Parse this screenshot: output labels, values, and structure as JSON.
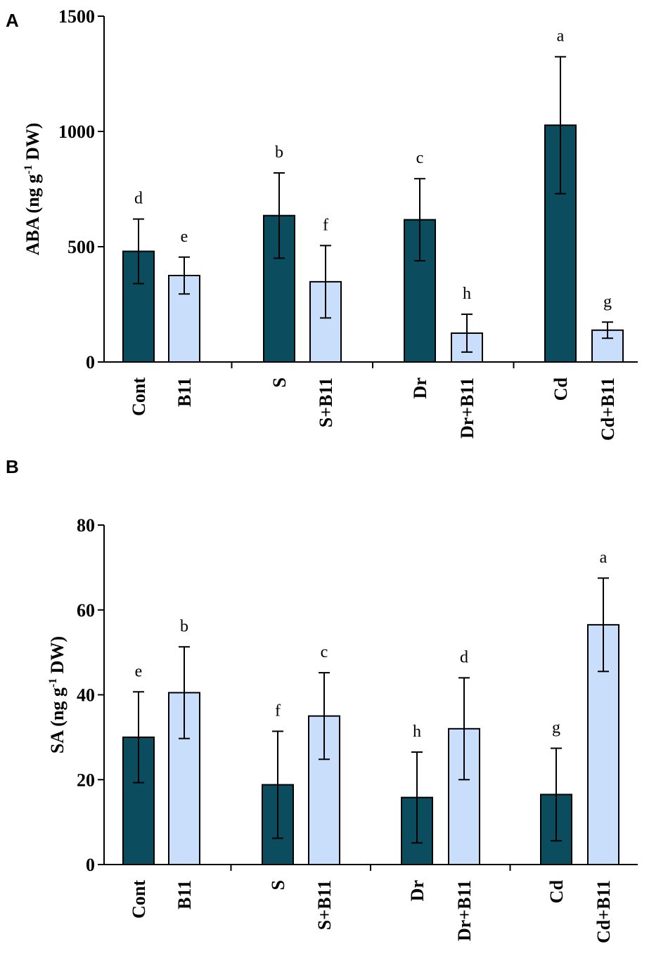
{
  "chart_data": [
    {
      "panel": "A",
      "type": "bar",
      "ylabel": {
        "pre": "ABA (ng g",
        "sup": "-1",
        "post": " DW)"
      },
      "ylim": [
        0,
        1500
      ],
      "yticks": [
        0,
        500,
        1000,
        1500
      ],
      "categories": [
        "Cont",
        "B11",
        "S",
        "S+B11",
        "Dr",
        "Dr+B11",
        "Cd",
        "Cd+B11"
      ],
      "values": [
        480,
        375,
        635,
        348,
        617,
        125,
        1027,
        138
      ],
      "errors": [
        140,
        80,
        185,
        157,
        178,
        82,
        297,
        35
      ],
      "letters": [
        "d",
        "e",
        "b",
        "f",
        "c",
        "h",
        "a",
        "g"
      ],
      "series_colors": {
        "without_B11": "#0b4d5e",
        "with_B11": "#c9defa"
      }
    },
    {
      "panel": "B",
      "type": "bar",
      "ylabel": {
        "pre": "SA (ng g",
        "sup": "-1",
        "post": " DW)"
      },
      "ylim": [
        0,
        80
      ],
      "yticks": [
        0,
        20,
        40,
        60,
        80
      ],
      "categories": [
        "Cont",
        "B11",
        "S",
        "S+B11",
        "Dr",
        "Dr+B11",
        "Cd",
        "Cd+B11"
      ],
      "values": [
        30,
        40.5,
        18.8,
        35,
        15.8,
        32,
        16.5,
        56.5
      ],
      "errors": [
        10.7,
        10.8,
        12.6,
        10.2,
        10.7,
        12,
        10.9,
        11
      ],
      "letters": [
        "e",
        "b",
        "f",
        "c",
        "h",
        "d",
        "g",
        "a"
      ],
      "series_colors": {
        "without_B11": "#0b4d5e",
        "with_B11": "#c9defa"
      }
    }
  ]
}
